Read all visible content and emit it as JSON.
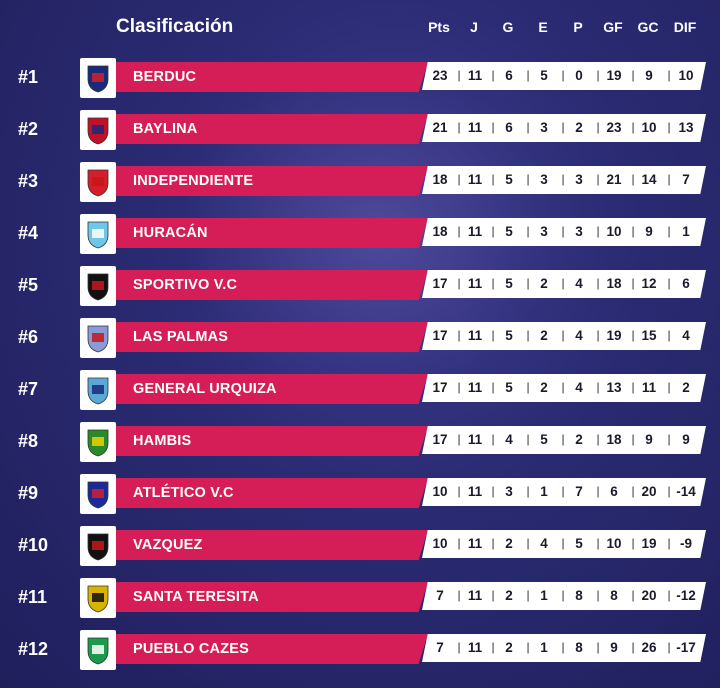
{
  "title": "Clasificación",
  "headers": [
    "Pts",
    "J",
    "G",
    "E",
    "P",
    "GF",
    "GC",
    "DIF"
  ],
  "separator": "|",
  "rows": [
    {
      "rank": "#1",
      "team": "BERDUC",
      "logo": "berduc-crest-icon",
      "stats": [
        "23",
        "11",
        "6",
        "5",
        "0",
        "19",
        "9",
        "10"
      ]
    },
    {
      "rank": "#2",
      "team": "BAYLINA",
      "logo": "baylina-crest-icon",
      "stats": [
        "21",
        "11",
        "6",
        "3",
        "2",
        "23",
        "10",
        "13"
      ]
    },
    {
      "rank": "#3",
      "team": "INDEPENDIENTE",
      "logo": "independiente-crest-icon",
      "stats": [
        "18",
        "11",
        "5",
        "3",
        "3",
        "21",
        "14",
        "7"
      ]
    },
    {
      "rank": "#4",
      "team": "HURACÁN",
      "logo": "huracan-crest-icon",
      "stats": [
        "18",
        "11",
        "5",
        "3",
        "3",
        "10",
        "9",
        "1"
      ]
    },
    {
      "rank": "#5",
      "team": "SPORTIVO V.C",
      "logo": "sportivo-crest-icon",
      "stats": [
        "17",
        "11",
        "5",
        "2",
        "4",
        "18",
        "12",
        "6"
      ]
    },
    {
      "rank": "#6",
      "team": "LAS PALMAS",
      "logo": "las-palmas-crest-icon",
      "stats": [
        "17",
        "11",
        "5",
        "2",
        "4",
        "19",
        "15",
        "4"
      ]
    },
    {
      "rank": "#7",
      "team": "GENERAL URQUIZA",
      "logo": "general-urquiza-crest-icon",
      "stats": [
        "17",
        "11",
        "5",
        "2",
        "4",
        "13",
        "11",
        "2"
      ]
    },
    {
      "rank": "#8",
      "team": "HAMBIS",
      "logo": "hambis-crest-icon",
      "stats": [
        "17",
        "11",
        "4",
        "5",
        "2",
        "18",
        "9",
        "9"
      ]
    },
    {
      "rank": "#9",
      "team": "ATLÉTICO V.C",
      "logo": "atletico-crest-icon",
      "stats": [
        "10",
        "11",
        "3",
        "1",
        "7",
        "6",
        "20",
        "-14"
      ]
    },
    {
      "rank": "#10",
      "team": "VAZQUEZ",
      "logo": "vazquez-crest-icon",
      "stats": [
        "10",
        "11",
        "2",
        "4",
        "5",
        "10",
        "19",
        "-9"
      ]
    },
    {
      "rank": "#11",
      "team": "SANTA TERESITA",
      "logo": "santa-teresita-crest-icon",
      "stats": [
        "7",
        "11",
        "2",
        "1",
        "8",
        "8",
        "20",
        "-12"
      ]
    },
    {
      "rank": "#12",
      "team": "PUEBLO CAZES",
      "logo": "pueblo-cazes-crest-icon",
      "stats": [
        "7",
        "11",
        "2",
        "1",
        "8",
        "9",
        "26",
        "-17"
      ]
    }
  ],
  "colors": {
    "accent": "#d51e58",
    "background": "#2a2a72",
    "stats_bg": "#ffffff"
  }
}
